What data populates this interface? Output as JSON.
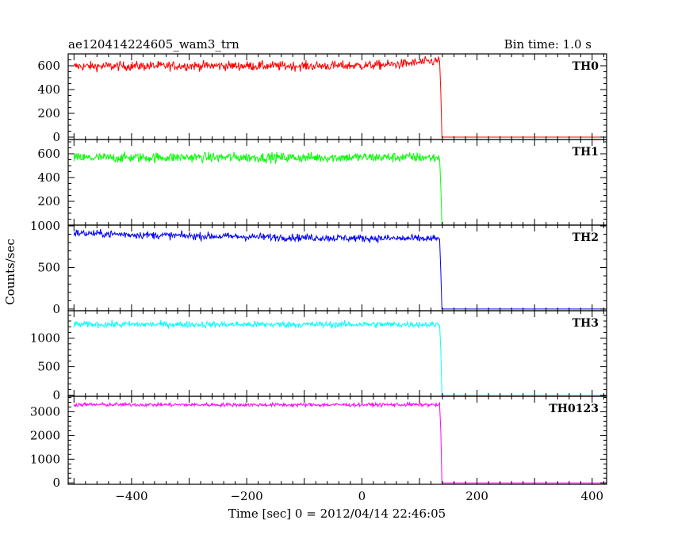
{
  "header": {
    "title": "ae120414224605_wam3_trn",
    "bin_time": "Bin time: 1.0 s"
  },
  "chart_data": {
    "type": "line",
    "title": "ae120414224605_wam3_trn",
    "subtitle": "Bin time: 1.0 s",
    "xlabel": "Time [sec] 0 = 2012/04/14 22:46:05",
    "ylabel": "Counts/sec",
    "xlim": [
      -510,
      425
    ],
    "x_ticks": [
      -400,
      -200,
      0,
      200,
      400
    ],
    "grid": false,
    "legend": "none",
    "panels": [
      {
        "name": "TH0",
        "color": "#ff0000",
        "ylim": [
          -20,
          700
        ],
        "y_ticks": [
          0,
          200,
          400,
          600
        ],
        "segments": [
          {
            "x": [
              -500,
              -300,
              -100,
              0,
              60,
              100,
              130,
              135
            ],
            "y": [
              595,
              600,
              598,
              602,
              612,
              628,
              640,
              645
            ]
          },
          {
            "x": [
              135,
              137,
              139,
              425
            ],
            "y": [
              645,
              380,
              0,
              0
            ]
          }
        ],
        "noise": 28
      },
      {
        "name": "TH1",
        "color": "#00ff00",
        "ylim": [
          0,
          720
        ],
        "y_ticks": [
          200,
          400,
          600
        ],
        "segments": [
          {
            "x": [
              -500,
              -300,
              -100,
              0,
              100,
              135
            ],
            "y": [
              565,
              570,
              568,
              570,
              570,
              565
            ]
          },
          {
            "x": [
              135,
              137,
              139,
              425
            ],
            "y": [
              560,
              330,
              0,
              0
            ]
          }
        ],
        "noise": 30
      },
      {
        "name": "TH2",
        "color": "#0000ff",
        "ylim": [
          -20,
          1010
        ],
        "y_ticks": [
          0,
          500,
          1000
        ],
        "segments": [
          {
            "x": [
              -500,
              -400,
              -300,
              -200,
              -100,
              0,
              100,
              135
            ],
            "y": [
              915,
              895,
              880,
              870,
              860,
              852,
              848,
              845
            ]
          },
          {
            "x": [
              135,
              137,
              139,
              425
            ],
            "y": [
              845,
              450,
              0,
              0
            ]
          }
        ],
        "noise": 32
      },
      {
        "name": "TH3",
        "color": "#00ffff",
        "ylim": [
          -20,
          1480
        ],
        "y_ticks": [
          0,
          500,
          1000
        ],
        "segments": [
          {
            "x": [
              -500,
              -300,
              -100,
              0,
              100,
              135
            ],
            "y": [
              1240,
              1240,
              1238,
              1240,
              1240,
              1235
            ]
          },
          {
            "x": [
              135,
              137,
              139,
              425
            ],
            "y": [
              1230,
              800,
              0,
              0
            ]
          }
        ],
        "noise": 40
      },
      {
        "name": "TH0123",
        "color": "#ff00ff",
        "ylim": [
          -60,
          3650
        ],
        "y_ticks": [
          0,
          1000,
          2000,
          3000
        ],
        "segments": [
          {
            "x": [
              -500,
              -300,
              -100,
              0,
              100,
              135
            ],
            "y": [
              3300,
              3295,
              3290,
              3295,
              3300,
              3290
            ]
          },
          {
            "x": [
              135,
              137,
              139,
              425
            ],
            "y": [
              3290,
              2200,
              0,
              0
            ]
          }
        ],
        "noise": 55
      }
    ]
  }
}
